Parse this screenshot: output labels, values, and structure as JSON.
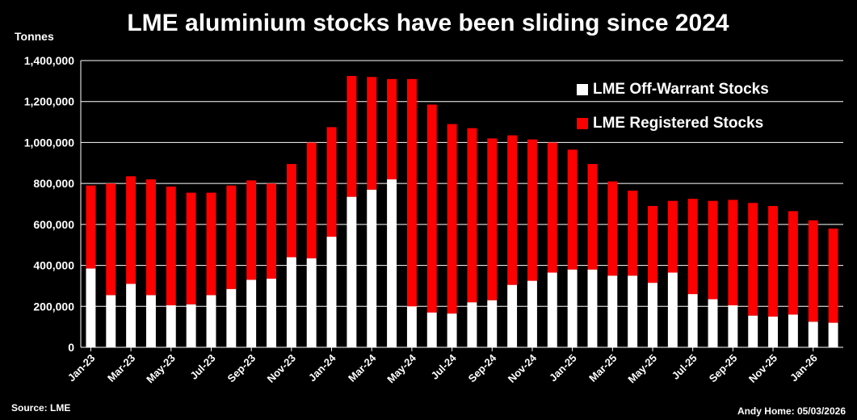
{
  "chart_data": {
    "type": "bar",
    "stacked": true,
    "title": "LME aluminium stocks have been sliding since 2024",
    "ylabel": "Tonnes",
    "ylim": [
      0,
      1400000
    ],
    "yticks": [
      0,
      200000,
      400000,
      600000,
      800000,
      1000000,
      1200000,
      1400000
    ],
    "ytick_labels": [
      "0",
      "200,000",
      "400,000",
      "600,000",
      "800,000",
      "1,000,000",
      "1,200,000",
      "1,400,000"
    ],
    "grid": true,
    "legend_position": "top-right",
    "categories": [
      "Jan-23",
      "Feb-23",
      "Mar-23",
      "Apr-23",
      "May-23",
      "Jun-23",
      "Jul-23",
      "Aug-23",
      "Sep-23",
      "Oct-23",
      "Nov-23",
      "Dec-23",
      "Jan-24",
      "Feb-24",
      "Mar-24",
      "Apr-24",
      "May-24",
      "Jun-24",
      "Jul-24",
      "Aug-24",
      "Sep-24",
      "Oct-24",
      "Nov-24",
      "Dec-24",
      "Jan-25",
      "Feb-25",
      "Mar-25",
      "Apr-25",
      "May-25",
      "Jun-25",
      "Jul-25",
      "Aug-25",
      "Sep-25",
      "Oct-25",
      "Nov-25",
      "Dec-25",
      "Jan-26",
      "Feb-26"
    ],
    "xtick_labels": [
      "Jan-23",
      "Mar-23",
      "May-23",
      "Jul-23",
      "Sep-23",
      "Nov-23",
      "Jan-24",
      "Mar-24",
      "May-24",
      "Jul-24",
      "Sep-24",
      "Nov-24",
      "Jan-25",
      "Mar-25",
      "May-25",
      "Jul-25",
      "Sep-25",
      "Nov-25",
      "Jan-26"
    ],
    "series": [
      {
        "name": "LME Off-Warrant Stocks",
        "color": "#ffffff",
        "values": [
          385000,
          255000,
          310000,
          255000,
          205000,
          210000,
          255000,
          285000,
          330000,
          335000,
          440000,
          435000,
          540000,
          735000,
          770000,
          820000,
          200000,
          170000,
          165000,
          220000,
          230000,
          305000,
          325000,
          365000,
          380000,
          380000,
          350000,
          350000,
          315000,
          365000,
          260000,
          235000,
          205000,
          155000,
          150000,
          160000,
          125000,
          120000
        ]
      },
      {
        "name": "LME Registered Stocks",
        "color": "#ff0000",
        "values": [
          405000,
          545000,
          525000,
          565000,
          580000,
          545000,
          500000,
          505000,
          485000,
          465000,
          455000,
          565000,
          535000,
          590000,
          550000,
          490000,
          1110000,
          1015000,
          925000,
          850000,
          790000,
          730000,
          690000,
          635000,
          585000,
          515000,
          460000,
          415000,
          375000,
          350000,
          465000,
          480000,
          515000,
          550000,
          540000,
          505000,
          495000,
          460000
        ]
      }
    ]
  },
  "footer": {
    "source": "Source: LME",
    "credit": "Andy Home: 05/03/2026"
  }
}
